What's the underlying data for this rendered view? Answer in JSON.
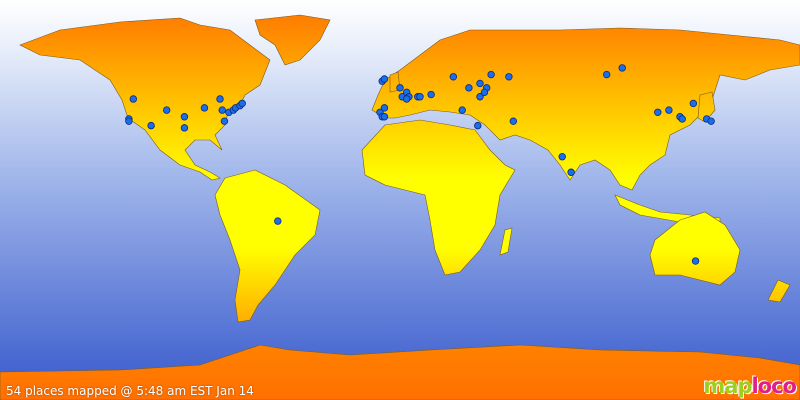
{
  "caption": "54 places mapped @ 5:48 am EST Jan 14",
  "logo": {
    "text": "maploco",
    "part1": "map",
    "part2": "loco"
  },
  "colors": {
    "land_top": "#ff7000",
    "land_mid": "#ffff00",
    "ocean_top": "#ffffff",
    "ocean_bottom": "#3c62d2",
    "marker": "#1a6ee8"
  },
  "places": [
    [
      41,
      -120
    ],
    [
      32,
      -122
    ],
    [
      31,
      -122
    ],
    [
      29,
      -112
    ],
    [
      36,
      -105
    ],
    [
      33,
      -97
    ],
    [
      28,
      -97
    ],
    [
      37,
      -88
    ],
    [
      41,
      -81
    ],
    [
      31,
      -79
    ],
    [
      35,
      -77
    ],
    [
      36,
      -75
    ],
    [
      37,
      -74
    ],
    [
      38,
      -72
    ],
    [
      39,
      -71
    ],
    [
      36,
      -80
    ],
    [
      49,
      -8
    ],
    [
      50,
      -7
    ],
    [
      35,
      -9
    ],
    [
      33,
      -8
    ],
    [
      33,
      -7
    ],
    [
      37,
      -7
    ],
    [
      46,
      0
    ],
    [
      42,
      1
    ],
    [
      44,
      3
    ],
    [
      42,
      4
    ],
    [
      42,
      8
    ],
    [
      42,
      9
    ],
    [
      41,
      3
    ],
    [
      43,
      14
    ],
    [
      51,
      24
    ],
    [
      46,
      31
    ],
    [
      36,
      28
    ],
    [
      48,
      36
    ],
    [
      42,
      36
    ],
    [
      46,
      39
    ],
    [
      44,
      38
    ],
    [
      29,
      35
    ],
    [
      52,
      41
    ],
    [
      51,
      49
    ],
    [
      31,
      51
    ],
    [
      52,
      93
    ],
    [
      55,
      100
    ],
    [
      15,
      73
    ],
    [
      8,
      77
    ],
    [
      35,
      116
    ],
    [
      36,
      121
    ],
    [
      33,
      126
    ],
    [
      32,
      127
    ],
    [
      39,
      132
    ],
    [
      32,
      138
    ],
    [
      31,
      140
    ],
    [
      -14,
      -55
    ],
    [
      -32,
      133
    ]
  ]
}
